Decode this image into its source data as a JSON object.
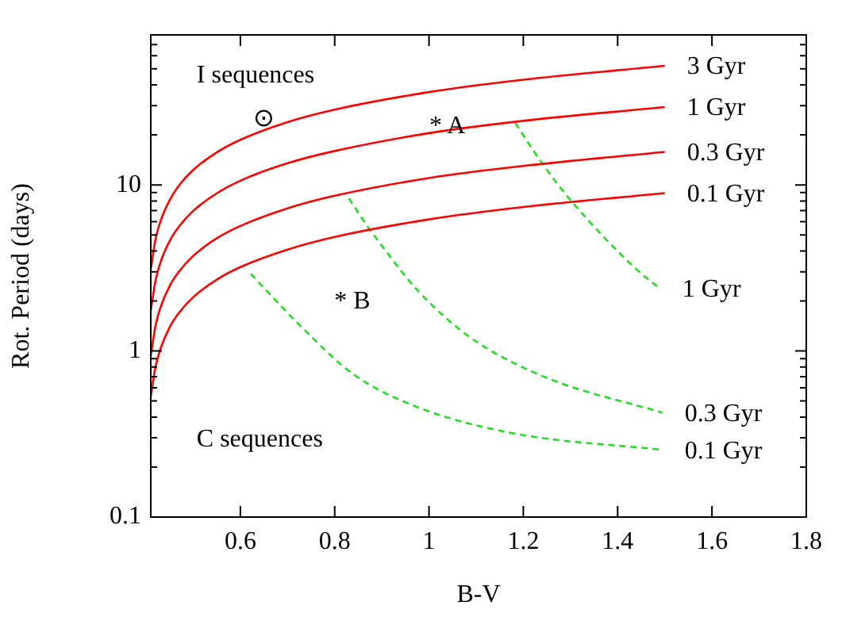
{
  "chart_data": {
    "type": "line",
    "xlabel": "B-V",
    "ylabel": "Rot. Period (days)",
    "log": "y",
    "grid": false,
    "legend": false,
    "marker": "none",
    "xlim": [
      0.41,
      1.8
    ],
    "xticks": [
      0.6,
      0.8,
      1,
      1.2,
      1.4,
      1.6,
      1.8
    ],
    "ylim": [
      0.1,
      80
    ],
    "yticks": [
      0.1,
      {
        "value": 0.2,
        "label": null
      },
      {
        "value": 0.3,
        "label": null
      },
      {
        "value": 0.4,
        "label": null
      },
      {
        "value": 0.5,
        "label": null
      },
      {
        "value": 0.6,
        "label": null
      },
      {
        "value": 0.7,
        "label": null
      },
      {
        "value": 0.8,
        "label": null
      },
      {
        "value": 0.9,
        "label": null
      },
      1,
      {
        "value": 2,
        "label": null
      },
      {
        "value": 3,
        "label": null
      },
      {
        "value": 4,
        "label": null
      },
      {
        "value": 5,
        "label": null
      },
      {
        "value": 6,
        "label": null
      },
      {
        "value": 7,
        "label": null
      },
      {
        "value": 8,
        "label": null
      },
      {
        "value": 9,
        "label": null
      },
      10,
      {
        "value": 20,
        "label": null
      },
      {
        "value": 30,
        "label": null
      },
      {
        "value": 40,
        "label": null
      },
      {
        "value": 50,
        "label": null
      },
      {
        "value": 60,
        "label": null
      },
      {
        "value": 70,
        "label": null
      },
      {
        "value": 80,
        "label": null
      }
    ],
    "annotations": [
      "I sequences",
      "C sequences",
      "⊙",
      "* A",
      "* B"
    ],
    "series": [
      {
        "name": "3 Gyr",
        "color": "#ff0000",
        "line_style": "solid",
        "x": [
          0.41,
          0.42,
          0.43,
          0.45,
          0.47,
          0.5,
          0.55,
          0.6,
          0.7,
          0.8,
          1.0,
          1.2,
          1.5
        ],
        "values": [
          3.1,
          4.7,
          5.98,
          8.1,
          9.94,
          12.3,
          15.7,
          18.7,
          23.9,
          28.4,
          36.2,
          43.0,
          52.1
        ]
      },
      {
        "name": "1 Gyr",
        "color": "#ff0000",
        "line_style": "solid",
        "x": [
          0.41,
          0.42,
          0.43,
          0.45,
          0.47,
          0.5,
          0.55,
          0.6,
          0.7,
          0.8,
          1.0,
          1.2,
          1.5
        ],
        "values": [
          1.75,
          2.65,
          3.38,
          4.59,
          5.62,
          6.98,
          8.9,
          10.6,
          13.5,
          16.0,
          20.5,
          24.3,
          29.4
        ]
      },
      {
        "name": "0.3 Gyr",
        "color": "#ff0000",
        "line_style": "solid",
        "x": [
          0.41,
          0.42,
          0.43,
          0.45,
          0.47,
          0.5,
          0.55,
          0.6,
          0.7,
          0.8,
          1.0,
          1.2,
          1.5
        ],
        "values": [
          0.94,
          1.42,
          1.81,
          2.46,
          3.01,
          3.74,
          4.77,
          5.66,
          7.23,
          8.6,
          11.0,
          13.0,
          15.8
        ]
      },
      {
        "name": "0.1 Gyr",
        "color": "#ff0000",
        "line_style": "solid",
        "x": [
          0.41,
          0.42,
          0.43,
          0.45,
          0.47,
          0.5,
          0.55,
          0.6,
          0.7,
          0.8,
          1.0,
          1.2,
          1.5
        ],
        "values": [
          0.53,
          0.8,
          1.02,
          1.39,
          1.7,
          2.11,
          2.69,
          3.2,
          4.08,
          4.86,
          6.2,
          7.36,
          8.92
        ]
      },
      {
        "name": "1 Gyr",
        "color": "#22dd22",
        "line_style": "dashed",
        "x": [
          1.183,
          1.239,
          1.3,
          1.44,
          1.49
        ],
        "values": [
          23.6,
          13.6,
          8.1,
          3.1,
          2.37
        ]
      },
      {
        "name": "0.3 Gyr",
        "color": "#22dd22",
        "line_style": "dashed",
        "x": [
          0.83,
          0.874,
          0.886,
          0.975,
          1.087,
          1.244,
          1.495
        ],
        "values": [
          8.3,
          5.4,
          4.86,
          2.33,
          1.21,
          0.7,
          0.425
        ]
      },
      {
        "name": "0.1 Gyr",
        "color": "#22dd22",
        "line_style": "dashed",
        "x": [
          0.622,
          0.729,
          0.841,
          0.975,
          1.177,
          1.495
        ],
        "values": [
          2.91,
          1.4,
          0.72,
          0.46,
          0.32,
          0.254
        ]
      }
    ]
  }
}
